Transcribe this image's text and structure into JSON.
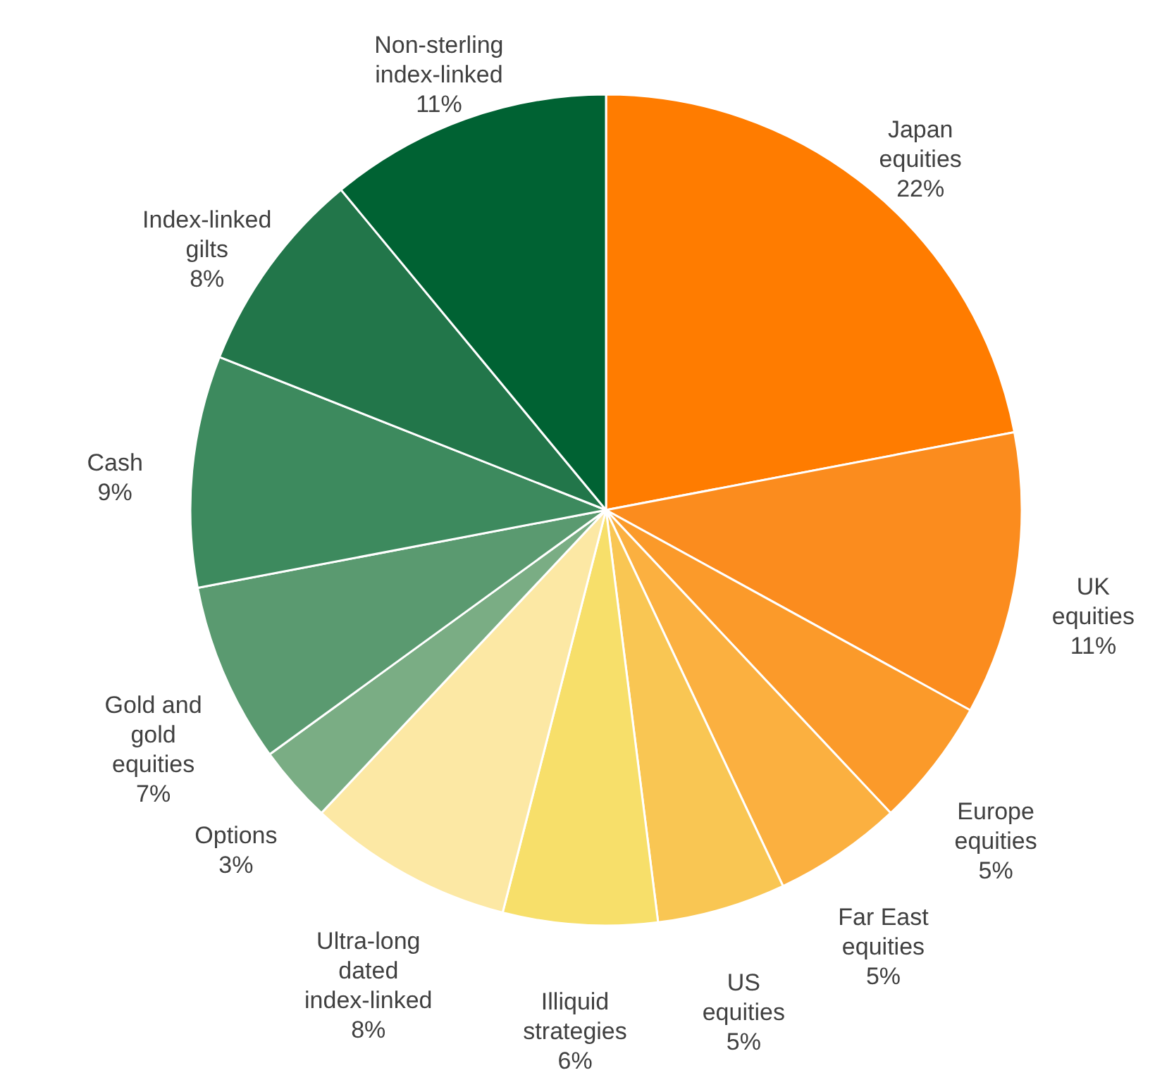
{
  "chart_data": {
    "type": "pie",
    "categories": [
      "Japan equities",
      "UK equities",
      "Europe equities",
      "Far East equities",
      "US equities",
      "Illiquid strategies",
      "Ultra-long dated index-linked",
      "Options",
      "Gold and gold equities",
      "Cash",
      "Index-linked gilts",
      "Non-sterling index-linked"
    ],
    "values": [
      22,
      11,
      5,
      5,
      5,
      6,
      8,
      3,
      7,
      9,
      8,
      11
    ],
    "value_labels": [
      "22%",
      "11%",
      "5%",
      "5%",
      "5%",
      "6%",
      "8%",
      "3%",
      "7%",
      "9%",
      "8%",
      "11%"
    ],
    "colors": [
      "#ff7c00",
      "#fb8c1e",
      "#fb9a2a",
      "#fbb040",
      "#f9c653",
      "#f7df6a",
      "#fce8a4",
      "#7aad84",
      "#5a9a70",
      "#3d8a5e",
      "#22764a",
      "#006233"
    ]
  }
}
